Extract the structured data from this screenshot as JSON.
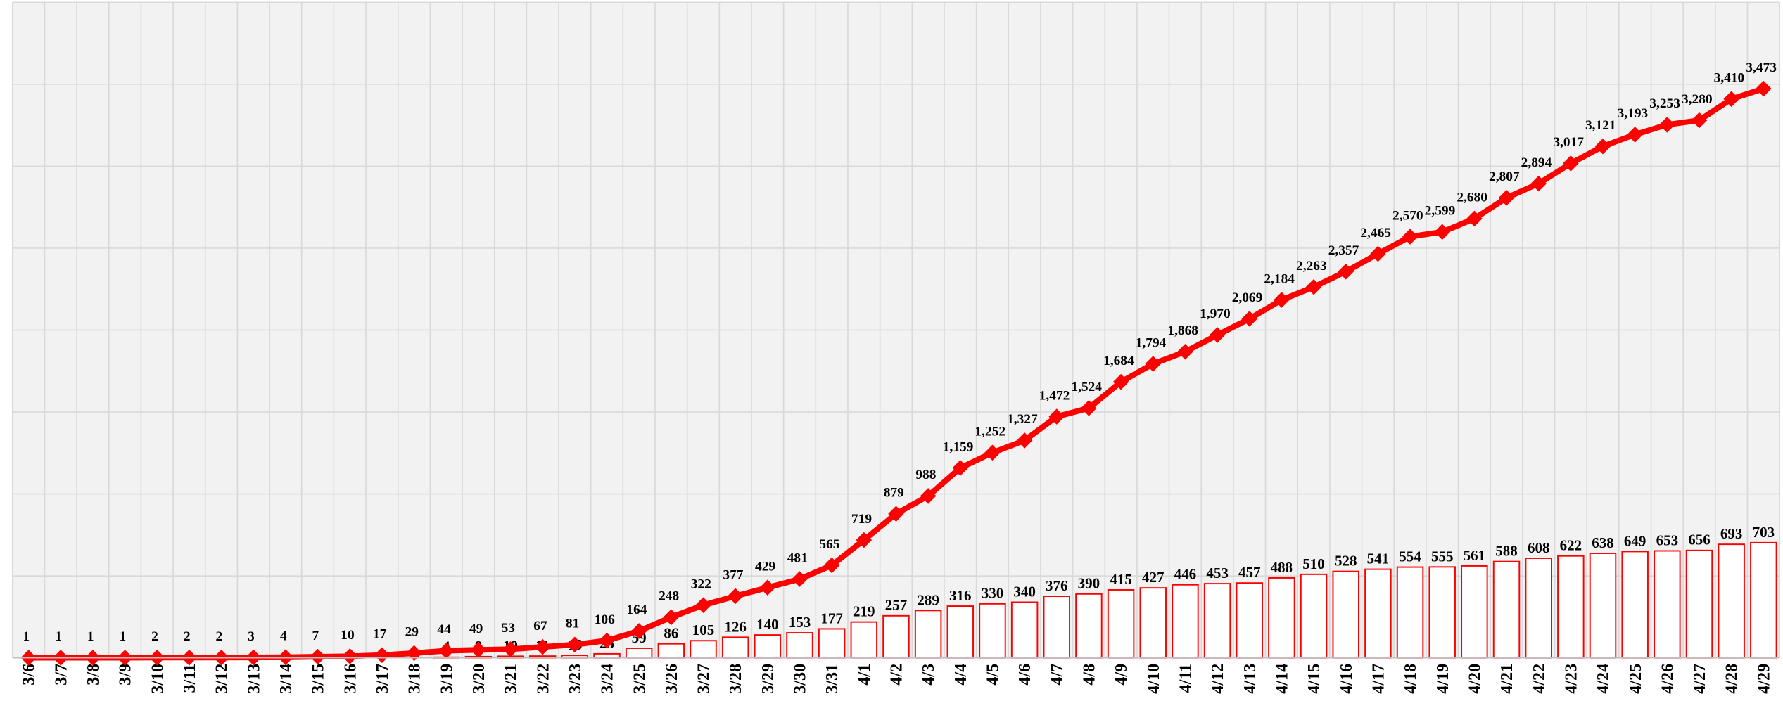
{
  "chart_data": {
    "type": "combo",
    "categories": [
      "3/6",
      "3/7",
      "3/8",
      "3/9",
      "3/10",
      "3/11",
      "3/12",
      "3/13",
      "3/14",
      "3/15",
      "3/16",
      "3/17",
      "3/18",
      "3/19",
      "3/20",
      "3/21",
      "3/22",
      "3/23",
      "3/24",
      "3/25",
      "3/26",
      "3/27",
      "3/28",
      "3/29",
      "3/30",
      "3/31",
      "4/1",
      "4/2",
      "4/3",
      "4/4",
      "4/5",
      "4/6",
      "4/7",
      "4/8",
      "4/9",
      "4/10",
      "4/11",
      "4/12",
      "4/13",
      "4/14",
      "4/15",
      "4/16",
      "4/17",
      "4/18",
      "4/19",
      "4/20",
      "4/21",
      "4/22",
      "4/23",
      "4/24",
      "4/25",
      "4/26",
      "4/27",
      "4/28",
      "4/29"
    ],
    "series": [
      {
        "type": "bar",
        "color": "#ff0000",
        "values": [
          null,
          null,
          null,
          null,
          null,
          null,
          null,
          null,
          null,
          null,
          null,
          null,
          null,
          4,
          8,
          10,
          11,
          15,
          25,
          59,
          86,
          105,
          126,
          140,
          153,
          177,
          219,
          257,
          289,
          316,
          330,
          340,
          376,
          390,
          415,
          427,
          446,
          453,
          457,
          488,
          510,
          528,
          541,
          554,
          555,
          561,
          588,
          608,
          622,
          638,
          649,
          653,
          656,
          693,
          703
        ]
      },
      {
        "type": "line",
        "color": "#ff0000",
        "values": [
          1,
          1,
          1,
          1,
          2,
          2,
          2,
          3,
          4,
          7,
          10,
          17,
          29,
          44,
          49,
          53,
          67,
          81,
          106,
          164,
          248,
          322,
          377,
          429,
          481,
          565,
          719,
          879,
          988,
          1159,
          1252,
          1327,
          1472,
          1524,
          1684,
          1794,
          1868,
          1970,
          2069,
          2184,
          2263,
          2357,
          2465,
          2570,
          2599,
          2680,
          2807,
          2894,
          3017,
          3121,
          3193,
          3253,
          3280,
          3410,
          3473
        ],
        "value_labels": [
          "1",
          "1",
          "1",
          "1",
          "2",
          "2",
          "2",
          "3",
          "4",
          "7",
          "10",
          "17",
          "29",
          "44",
          "49",
          "53",
          "67",
          "81",
          "106",
          "164",
          "248",
          "322",
          "377",
          "429",
          "481",
          "565",
          "719",
          "879",
          "988",
          "1,159",
          "1,252",
          "1,327",
          "1,472",
          "1,524",
          "1,684",
          "1,794",
          "1,868",
          "1,970",
          "2,069",
          "2,184",
          "2,263",
          "2,357",
          "2,465",
          "2,570",
          "2,599",
          "2,680",
          "2,807",
          "2,894",
          "3,017",
          "3,121",
          "3,193",
          "3,253",
          "3,280",
          "3,410",
          "3,473"
        ]
      }
    ],
    "ylim": [
      0,
      4000
    ],
    "yticks": [
      0,
      500,
      1000,
      1500,
      2000,
      2500,
      3000,
      3500,
      4000
    ],
    "grid": true
  }
}
